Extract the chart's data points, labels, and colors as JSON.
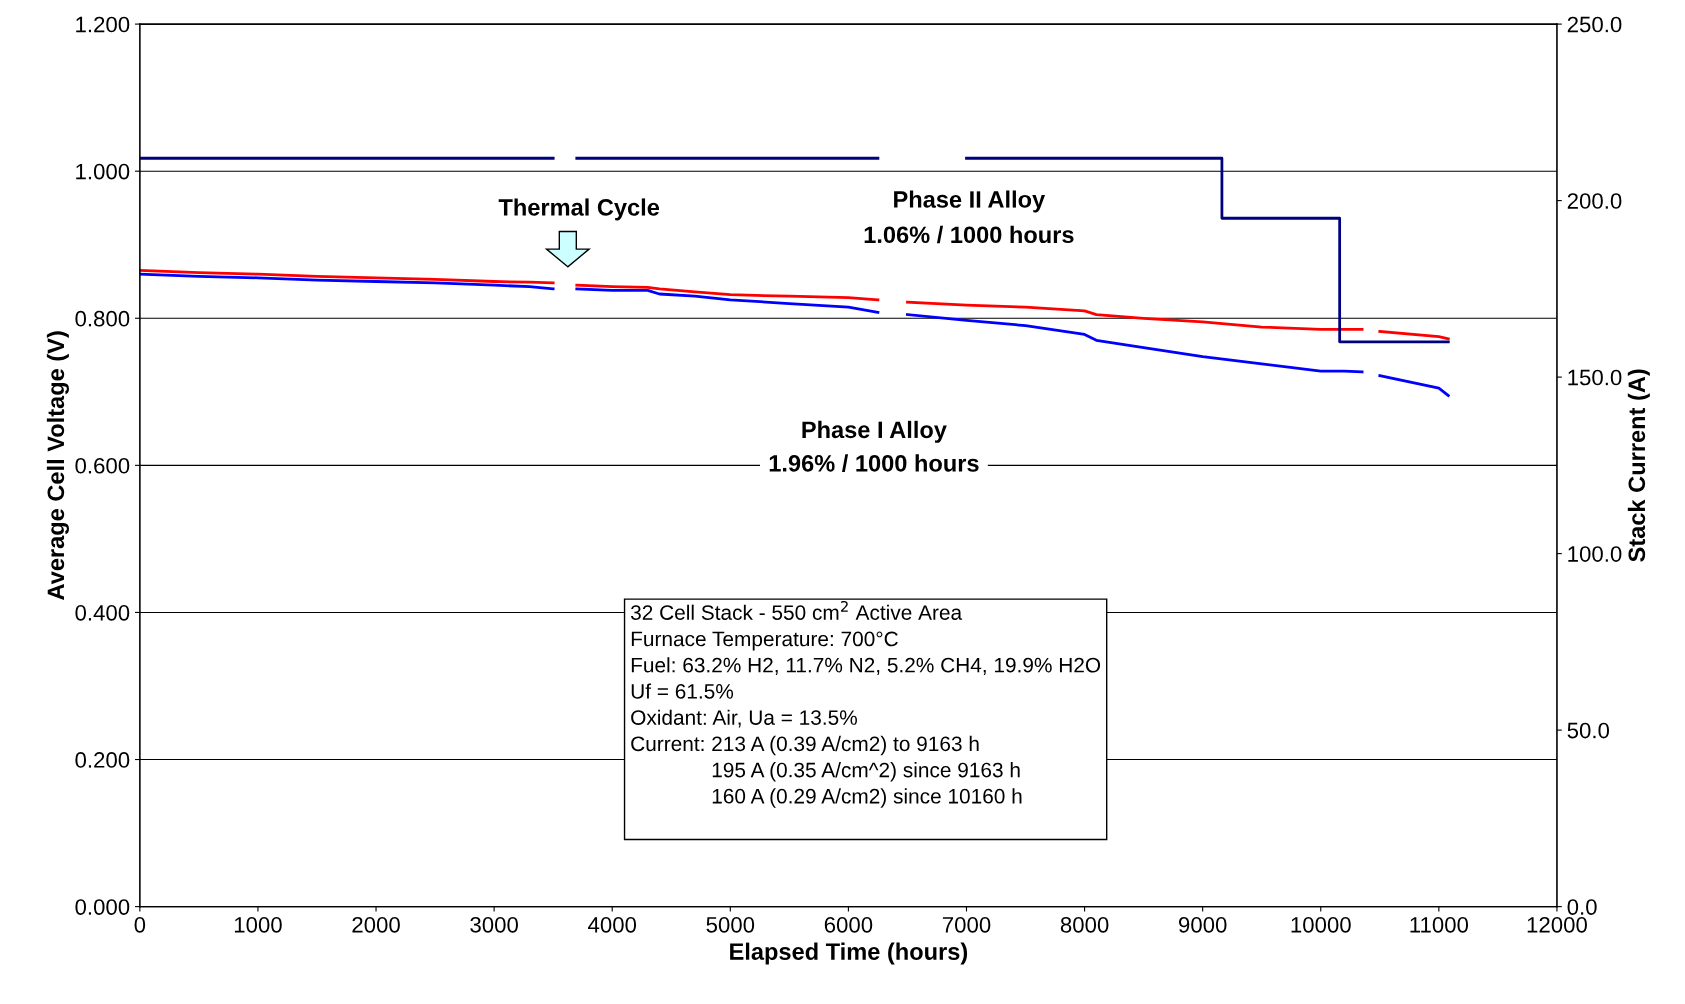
{
  "chart_data": {
    "type": "line",
    "xlabel": "Elapsed Time (hours)",
    "ylabel": "Average Cell Voltage (V)",
    "y2label": "Stack Current (A)",
    "xlim": [
      0,
      12000
    ],
    "xticks": [
      0,
      1000,
      2000,
      3000,
      4000,
      5000,
      6000,
      7000,
      8000,
      9000,
      10000,
      11000,
      12000
    ],
    "ylim": [
      0,
      1.2
    ],
    "yticks": [
      {
        "value": 0,
        "label": "0.000"
      },
      {
        "value": 0.2,
        "label": "0.200"
      },
      {
        "value": 0.4,
        "label": "0.400"
      },
      {
        "value": 0.6,
        "label": "0.600"
      },
      {
        "value": 0.8,
        "label": "0.800"
      },
      {
        "value": 1.0,
        "label": "1.000"
      },
      {
        "value": 1.2,
        "label": "1.200"
      }
    ],
    "y2lim": [
      0,
      250
    ],
    "y2ticks": [
      {
        "value": 0,
        "label": "0.0"
      },
      {
        "value": 50,
        "label": "50.0"
      },
      {
        "value": 100,
        "label": "100.0"
      },
      {
        "value": 150,
        "label": "150.0"
      },
      {
        "value": 200,
        "label": "200.0"
      },
      {
        "value": 250,
        "label": "250.0"
      }
    ],
    "grid": "y",
    "legend": false,
    "marker": "none",
    "line_style": "solid",
    "series": [
      {
        "color": "#ff0000",
        "x": [
          0,
          500,
          1000,
          1500,
          2000,
          2500,
          3000,
          3300,
          3500,
          3550,
          3700,
          4000,
          4300,
          4400,
          4700,
          5000,
          5500,
          6000,
          6250,
          6300,
          6500,
          7000,
          7500,
          8000,
          8100,
          8500,
          9000,
          9500,
          10000,
          10200,
          10350,
          10450,
          10500,
          11000,
          11080
        ],
        "values": [
          0.865,
          0.862,
          0.86,
          0.857,
          0.855,
          0.853,
          0.85,
          0.849,
          0.848,
          null,
          0.845,
          0.843,
          0.842,
          0.84,
          0.836,
          0.832,
          0.83,
          0.828,
          0.825,
          null,
          0.822,
          0.818,
          0.815,
          0.81,
          0.805,
          0.8,
          0.795,
          0.788,
          0.785,
          0.785,
          0.785,
          null,
          0.782,
          0.775,
          0.772
        ]
      },
      {
        "color": "#0000ff",
        "x": [
          0,
          500,
          1000,
          1500,
          2000,
          2500,
          3000,
          3300,
          3500,
          3550,
          3700,
          4000,
          4300,
          4400,
          4700,
          5000,
          5500,
          6000,
          6250,
          6300,
          6500,
          7000,
          7500,
          8000,
          8100,
          8500,
          9000,
          9500,
          10000,
          10200,
          10350,
          10450,
          10500,
          11000,
          11080
        ],
        "values": [
          0.86,
          0.857,
          0.855,
          0.852,
          0.85,
          0.848,
          0.845,
          0.843,
          0.84,
          null,
          0.84,
          0.838,
          0.838,
          0.833,
          0.83,
          0.825,
          0.82,
          0.815,
          0.808,
          null,
          0.805,
          0.797,
          0.79,
          0.778,
          0.77,
          0.76,
          0.748,
          0.738,
          0.728,
          0.728,
          0.727,
          null,
          0.722,
          0.705,
          0.695
        ]
      },
      {
        "color": "#000080",
        "axis": "y2",
        "x": [
          0,
          1000,
          2000,
          3000,
          3500,
          3550,
          3700,
          5000,
          6000,
          6250,
          6300,
          7000,
          8000,
          9163,
          9163.1,
          10000,
          10160,
          10160.1,
          11080
        ],
        "values": [
          212,
          212,
          212,
          212,
          212,
          null,
          212,
          212,
          212,
          212,
          null,
          212,
          212,
          212,
          195,
          195,
          195,
          160,
          160
        ]
      }
    ],
    "annotations": [
      "Thermal Cycle",
      "Phase II Alloy",
      "1.06% / 1000 hours",
      "Phase I Alloy",
      "1.96% / 1000 hours",
      "32 Cell Stack - 550 cm$^{2}$ Active Area\nFurnace Temperature: 700°C\nFuel: 63.2% H2, 11.7% N2, 5.2% CH4, 19.9% H2O\nUf = 61.5%\nOxidant: Air, Ua = 13.5%\nCurrent: 213 A (0.39 A/cm2) to 9163 h\n              195 A (0.35 A/cm^2) since 9163 h\n              160 A (0.29 A/cm2) since 10160 h\n "
    ]
  }
}
